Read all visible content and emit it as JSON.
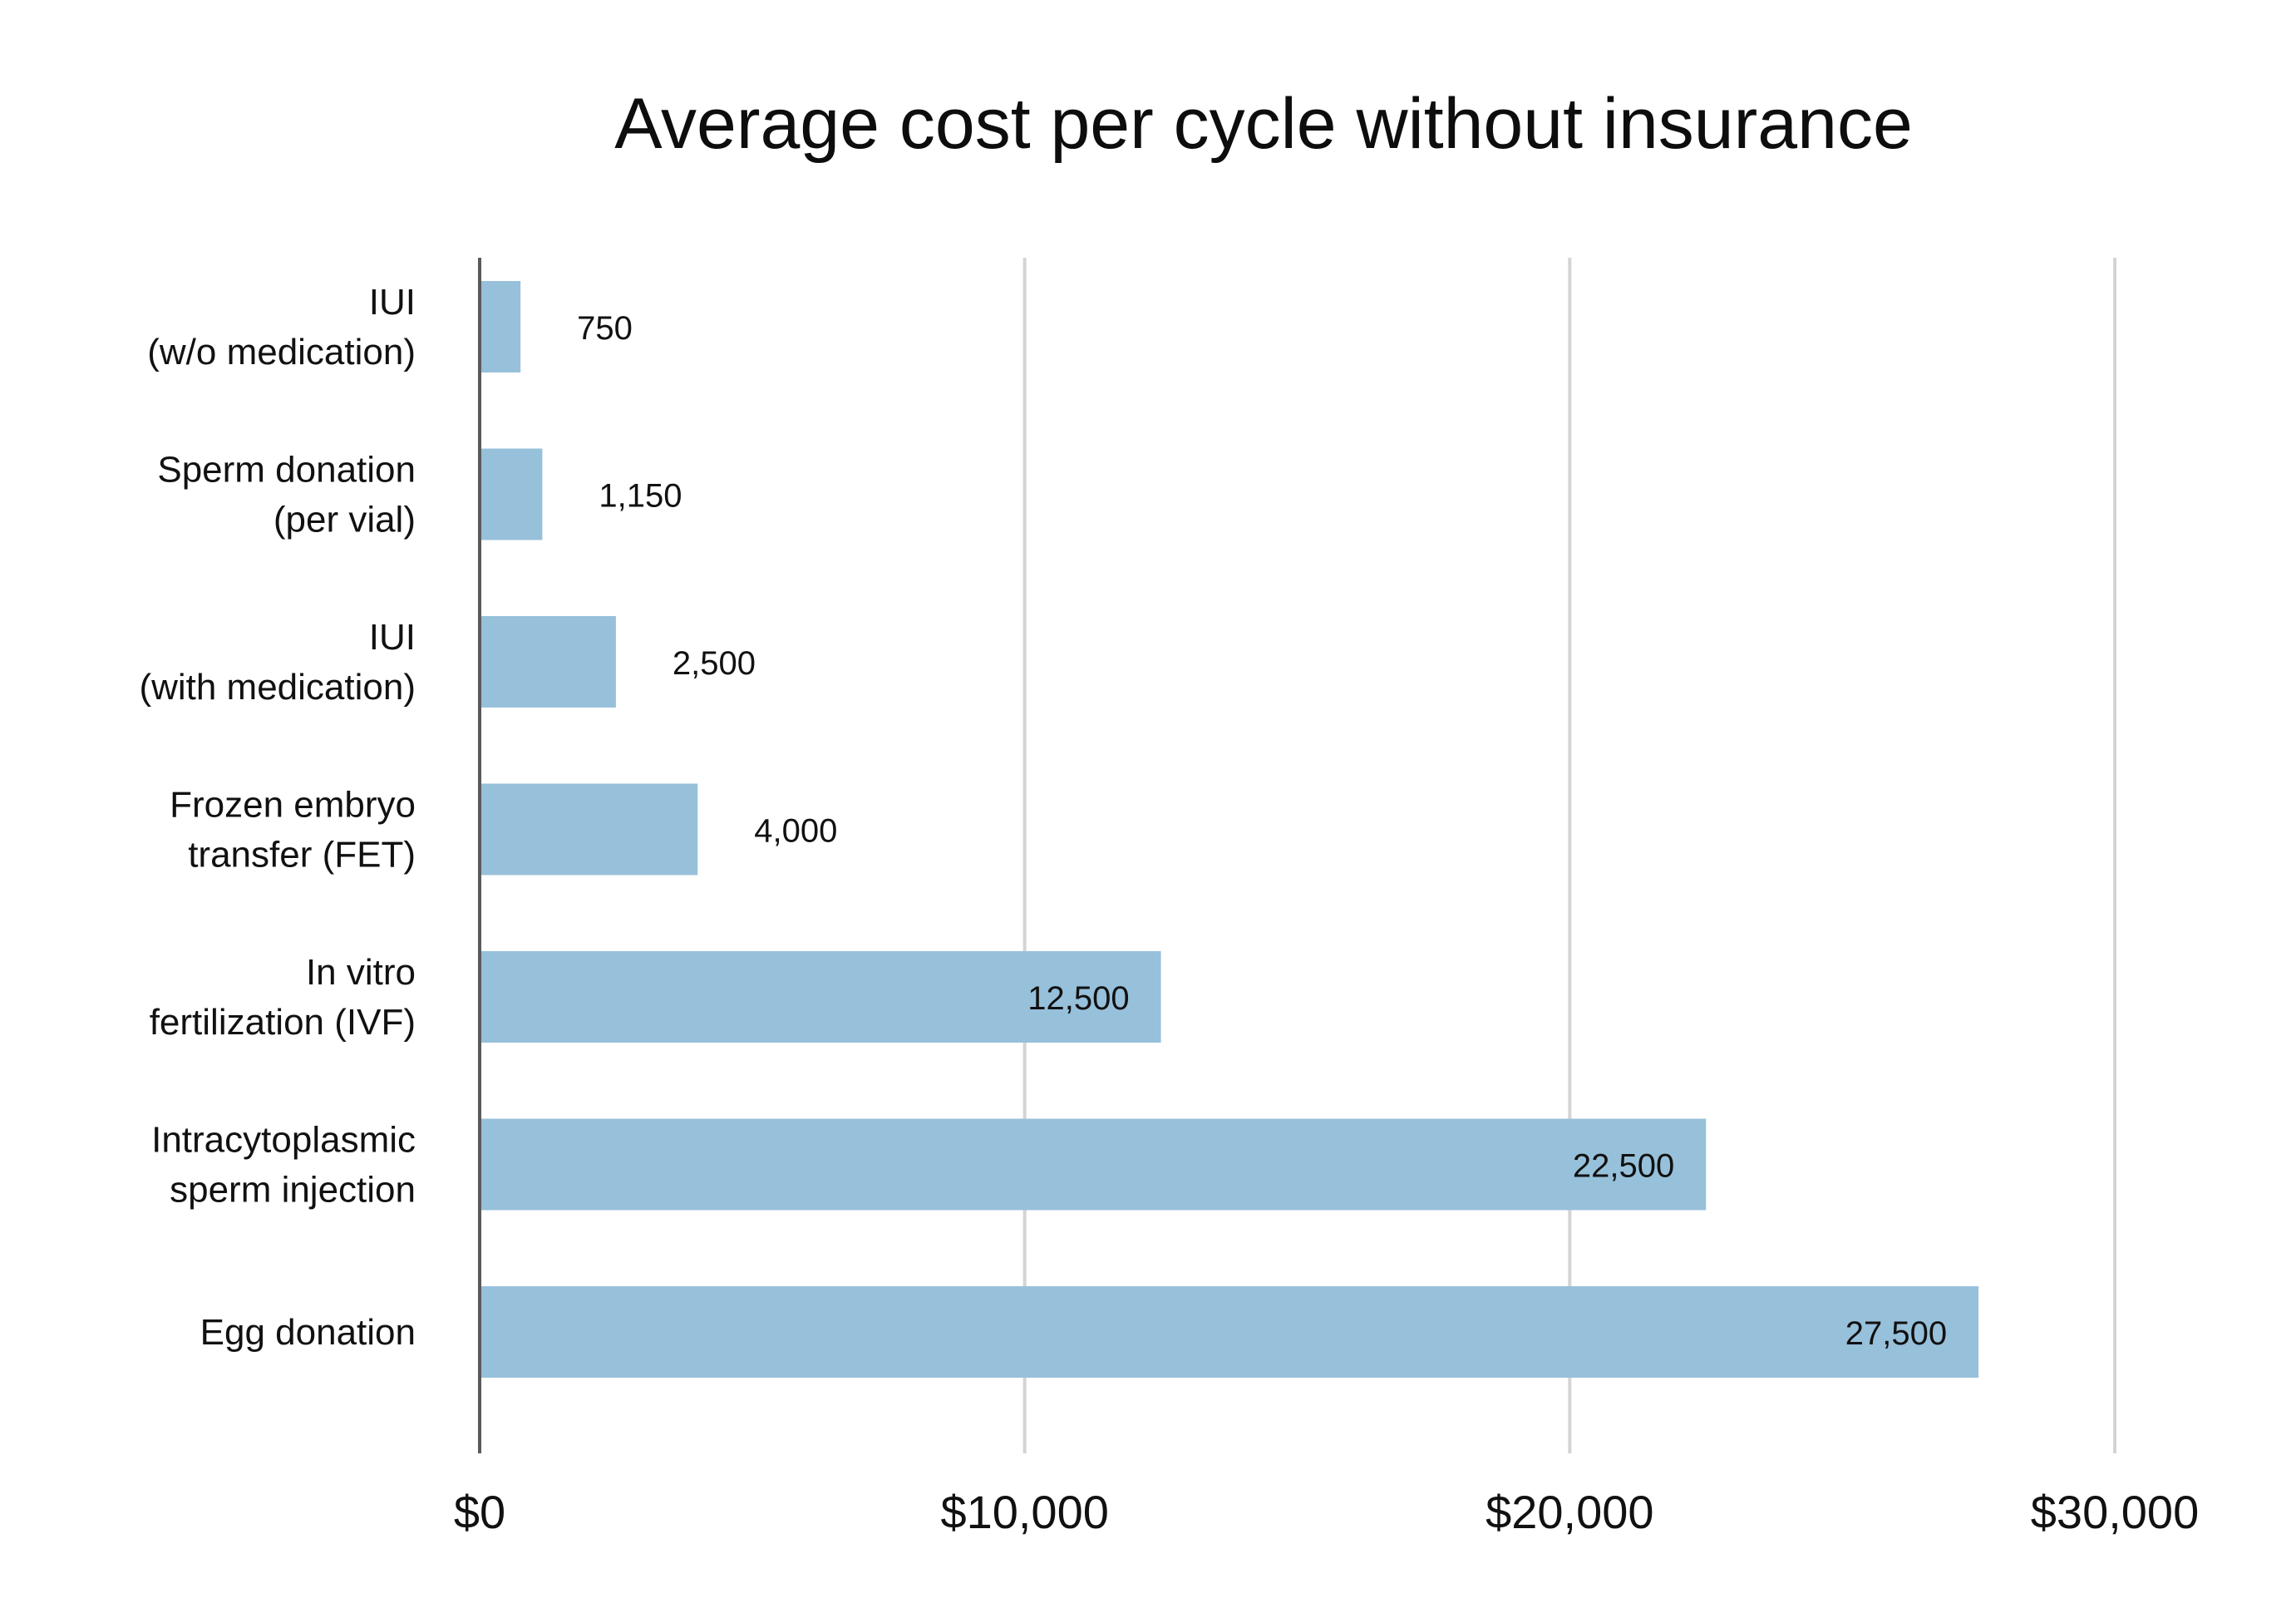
{
  "chart_data": {
    "type": "bar",
    "orientation": "horizontal",
    "title": "Average cost per cycle without insurance",
    "xlabel": "",
    "ylabel": "",
    "xlim": [
      0,
      30000
    ],
    "x_ticks": [
      0,
      10000,
      20000,
      30000
    ],
    "x_tick_labels": [
      "$0",
      "$10,000",
      "$20,000",
      "$30,000"
    ],
    "grid": "vertical",
    "bar_color": "#97c0da",
    "categories": [
      [
        "IUI",
        "(w/o medication)"
      ],
      [
        "Sperm donation",
        "(per vial)"
      ],
      [
        "IUI",
        "(with medication)"
      ],
      [
        "Frozen embryo",
        "transfer (FET)"
      ],
      [
        "In vitro",
        "fertilization (IVF)"
      ],
      [
        "Intracytoplasmic",
        "sperm injection"
      ],
      [
        "Egg donation"
      ]
    ],
    "values": [
      750,
      1150,
      2500,
      4000,
      12500,
      22500,
      27500
    ],
    "value_labels": [
      "750",
      "1,150",
      "2,500",
      "4,000",
      "12,500",
      "22,500",
      "27,500"
    ]
  }
}
